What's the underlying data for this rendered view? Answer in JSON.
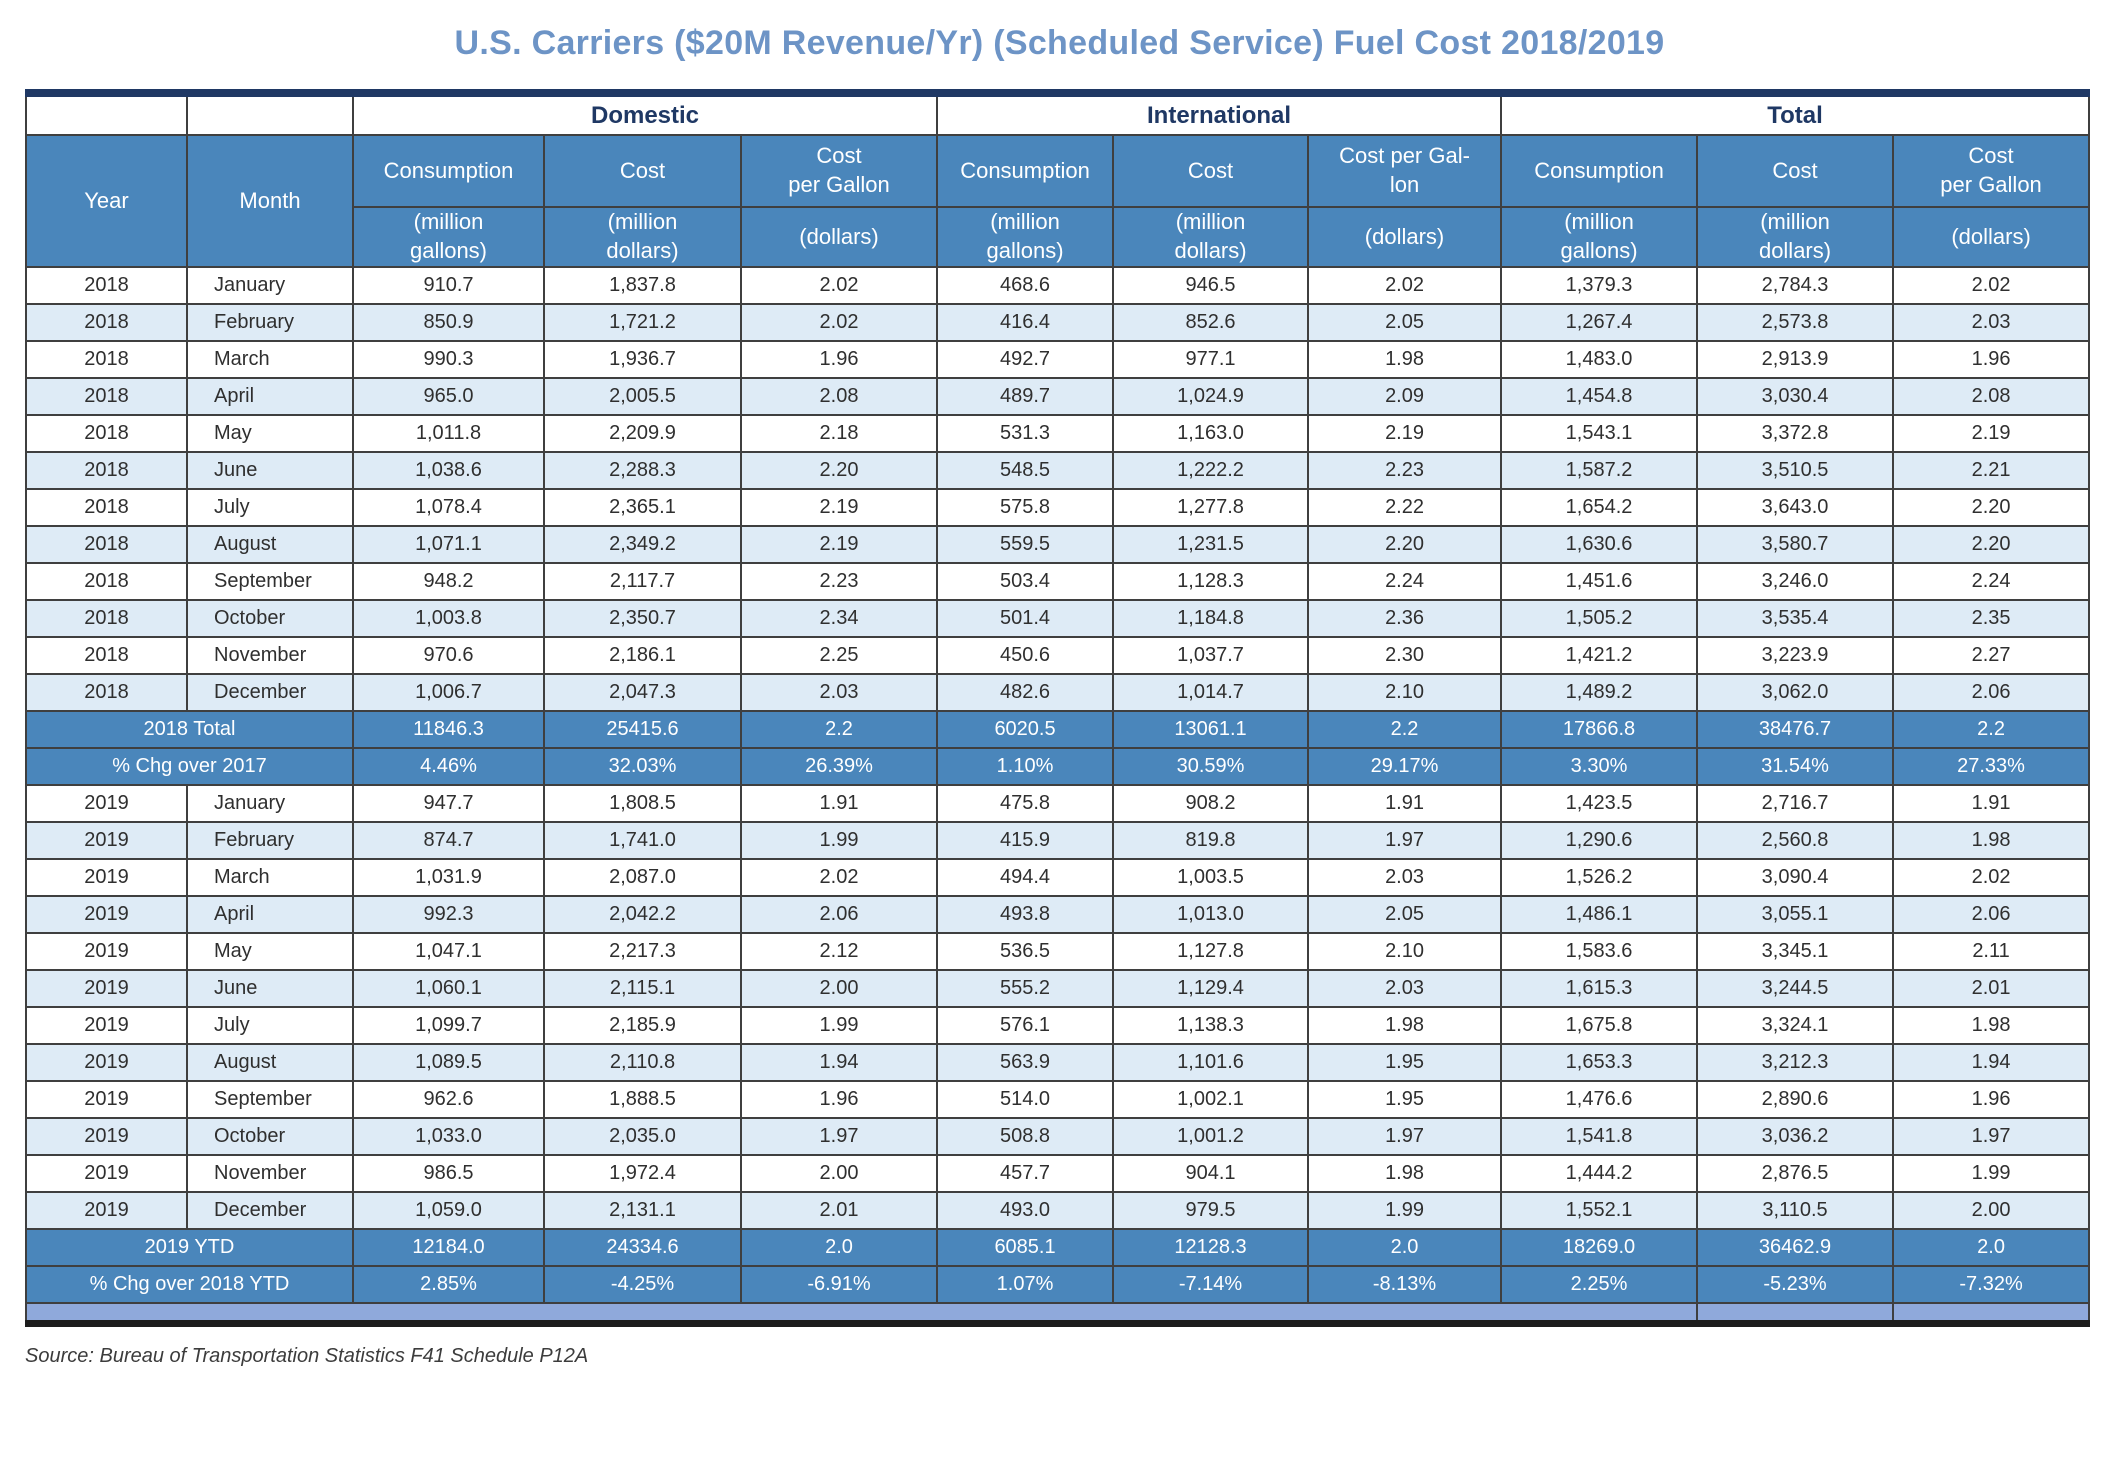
{
  "title": "U.S. Carriers ($20M Revenue/Yr) (Scheduled Service) Fuel Cost 2018/2019",
  "source_note": "Source: Bureau of Transportation Statistics F41 Schedule P12A",
  "colors": {
    "steel": "#4A86BB",
    "light_row": "#DEEBF6",
    "navy": "#1F3864",
    "title_blue": "#6D94C6",
    "strip_blue": "#8FA9DB",
    "border_dark": "#3F3F3F"
  },
  "table": {
    "row_headers": [
      "Year",
      "Month"
    ],
    "groups": [
      {
        "label": "Domestic",
        "columns": [
          {
            "label": "Consumption",
            "unit": "(million\ngallons)"
          },
          {
            "label": "Cost",
            "unit": "(million\ndollars)"
          },
          {
            "label": "Cost\nper Gallon",
            "unit": "(dollars)"
          }
        ]
      },
      {
        "label": "International",
        "columns": [
          {
            "label": "Consumption",
            "unit": "(million\ngallons)"
          },
          {
            "label": "Cost",
            "unit": "(million\ndollars)"
          },
          {
            "label": "Cost per Gal-\nlon",
            "unit": "(dollars)"
          }
        ]
      },
      {
        "label": "Total",
        "columns": [
          {
            "label": "Consumption",
            "unit": "(million\ngallons)"
          },
          {
            "label": "Cost",
            "unit": "(million\ndollars)"
          },
          {
            "label": "Cost\nper Gallon",
            "unit": "(dollars)"
          }
        ]
      }
    ],
    "rows": [
      {
        "year": "2018",
        "month": "January",
        "values": [
          "910.7",
          "1,837.8",
          "2.02",
          "468.6",
          "946.5",
          "2.02",
          "1,379.3",
          "2,784.3",
          "2.02"
        ]
      },
      {
        "year": "2018",
        "month": "February",
        "values": [
          "850.9",
          "1,721.2",
          "2.02",
          "416.4",
          "852.6",
          "2.05",
          "1,267.4",
          "2,573.8",
          "2.03"
        ]
      },
      {
        "year": "2018",
        "month": "March",
        "values": [
          "990.3",
          "1,936.7",
          "1.96",
          "492.7",
          "977.1",
          "1.98",
          "1,483.0",
          "2,913.9",
          "1.96"
        ]
      },
      {
        "year": "2018",
        "month": "April",
        "values": [
          "965.0",
          "2,005.5",
          "2.08",
          "489.7",
          "1,024.9",
          "2.09",
          "1,454.8",
          "3,030.4",
          "2.08"
        ]
      },
      {
        "year": "2018",
        "month": "May",
        "values": [
          "1,011.8",
          "2,209.9",
          "2.18",
          "531.3",
          "1,163.0",
          "2.19",
          "1,543.1",
          "3,372.8",
          "2.19"
        ]
      },
      {
        "year": "2018",
        "month": "June",
        "values": [
          "1,038.6",
          "2,288.3",
          "2.20",
          "548.5",
          "1,222.2",
          "2.23",
          "1,587.2",
          "3,510.5",
          "2.21"
        ]
      },
      {
        "year": "2018",
        "month": "July",
        "values": [
          "1,078.4",
          "2,365.1",
          "2.19",
          "575.8",
          "1,277.8",
          "2.22",
          "1,654.2",
          "3,643.0",
          "2.20"
        ]
      },
      {
        "year": "2018",
        "month": "August",
        "values": [
          "1,071.1",
          "2,349.2",
          "2.19",
          "559.5",
          "1,231.5",
          "2.20",
          "1,630.6",
          "3,580.7",
          "2.20"
        ]
      },
      {
        "year": "2018",
        "month": "September",
        "values": [
          "948.2",
          "2,117.7",
          "2.23",
          "503.4",
          "1,128.3",
          "2.24",
          "1,451.6",
          "3,246.0",
          "2.24"
        ]
      },
      {
        "year": "2018",
        "month": "October",
        "values": [
          "1,003.8",
          "2,350.7",
          "2.34",
          "501.4",
          "1,184.8",
          "2.36",
          "1,505.2",
          "3,535.4",
          "2.35"
        ]
      },
      {
        "year": "2018",
        "month": "November",
        "values": [
          "970.6",
          "2,186.1",
          "2.25",
          "450.6",
          "1,037.7",
          "2.30",
          "1,421.2",
          "3,223.9",
          "2.27"
        ]
      },
      {
        "year": "2018",
        "month": "December",
        "values": [
          "1,006.7",
          "2,047.3",
          "2.03",
          "482.6",
          "1,014.7",
          "2.10",
          "1,489.2",
          "3,062.0",
          "2.06"
        ]
      },
      {
        "summary": true,
        "label": "2018 Total",
        "values": [
          "11846.3",
          "25415.6",
          "2.2",
          "6020.5",
          "13061.1",
          "2.2",
          "17866.8",
          "38476.7",
          "2.2"
        ]
      },
      {
        "summary": true,
        "label": "% Chg over 2017",
        "values": [
          "4.46%",
          "32.03%",
          "26.39%",
          "1.10%",
          "30.59%",
          "29.17%",
          "3.30%",
          "31.54%",
          "27.33%"
        ]
      },
      {
        "year": "2019",
        "month": "January",
        "values": [
          "947.7",
          "1,808.5",
          "1.91",
          "475.8",
          "908.2",
          "1.91",
          "1,423.5",
          "2,716.7",
          "1.91"
        ]
      },
      {
        "year": "2019",
        "month": "February",
        "values": [
          "874.7",
          "1,741.0",
          "1.99",
          "415.9",
          "819.8",
          "1.97",
          "1,290.6",
          "2,560.8",
          "1.98"
        ]
      },
      {
        "year": "2019",
        "month": "March",
        "values": [
          "1,031.9",
          "2,087.0",
          "2.02",
          "494.4",
          "1,003.5",
          "2.03",
          "1,526.2",
          "3,090.4",
          "2.02"
        ]
      },
      {
        "year": "2019",
        "month": "April",
        "values": [
          "992.3",
          "2,042.2",
          "2.06",
          "493.8",
          "1,013.0",
          "2.05",
          "1,486.1",
          "3,055.1",
          "2.06"
        ]
      },
      {
        "year": "2019",
        "month": "May",
        "values": [
          "1,047.1",
          "2,217.3",
          "2.12",
          "536.5",
          "1,127.8",
          "2.10",
          "1,583.6",
          "3,345.1",
          "2.11"
        ]
      },
      {
        "year": "2019",
        "month": "June",
        "values": [
          "1,060.1",
          "2,115.1",
          "2.00",
          "555.2",
          "1,129.4",
          "2.03",
          "1,615.3",
          "3,244.5",
          "2.01"
        ]
      },
      {
        "year": "2019",
        "month": "July",
        "values": [
          "1,099.7",
          "2,185.9",
          "1.99",
          "576.1",
          "1,138.3",
          "1.98",
          "1,675.8",
          "3,324.1",
          "1.98"
        ]
      },
      {
        "year": "2019",
        "month": "August",
        "values": [
          "1,089.5",
          "2,110.8",
          "1.94",
          "563.9",
          "1,101.6",
          "1.95",
          "1,653.3",
          "3,212.3",
          "1.94"
        ]
      },
      {
        "year": "2019",
        "month": "September",
        "values": [
          "962.6",
          "1,888.5",
          "1.96",
          "514.0",
          "1,002.1",
          "1.95",
          "1,476.6",
          "2,890.6",
          "1.96"
        ]
      },
      {
        "year": "2019",
        "month": "October",
        "values": [
          "1,033.0",
          "2,035.0",
          "1.97",
          "508.8",
          "1,001.2",
          "1.97",
          "1,541.8",
          "3,036.2",
          "1.97"
        ]
      },
      {
        "year": "2019",
        "month": "November",
        "values": [
          "986.5",
          "1,972.4",
          "2.00",
          "457.7",
          "904.1",
          "1.98",
          "1,444.2",
          "2,876.5",
          "1.99"
        ]
      },
      {
        "year": "2019",
        "month": "December",
        "values": [
          "1,059.0",
          "2,131.1",
          "2.01",
          "493.0",
          "979.5",
          "1.99",
          "1,552.1",
          "3,110.5",
          "2.00"
        ]
      },
      {
        "summary": true,
        "label": "2019 YTD",
        "values": [
          "12184.0",
          "24334.6",
          "2.0",
          "6085.1",
          "12128.3",
          "2.0",
          "18269.0",
          "36462.9",
          "2.0"
        ]
      },
      {
        "summary": true,
        "label": "% Chg over 2018 YTD",
        "values": [
          "2.85%",
          "-4.25%",
          "-6.91%",
          "1.07%",
          "-7.14%",
          "-8.13%",
          "2.25%",
          "-5.23%",
          "-7.32%"
        ]
      }
    ]
  }
}
